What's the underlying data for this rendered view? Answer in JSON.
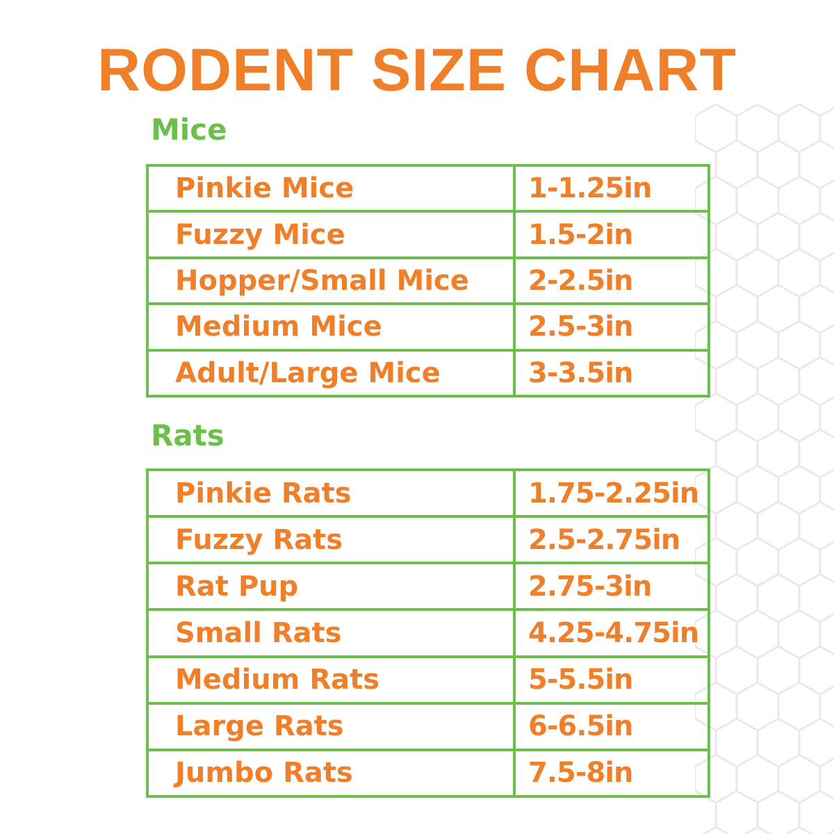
{
  "title": "RODENT SIZE CHART",
  "colors": {
    "title": "#f07f2a",
    "section": "#6cbf4a",
    "border": "#6cbf4a",
    "text": "#f07f2a"
  },
  "mice": {
    "heading": "Mice",
    "rows": [
      {
        "name": "Pinkie Mice",
        "size": "1-1.25in"
      },
      {
        "name": "Fuzzy Mice",
        "size": "1.5-2in"
      },
      {
        "name": "Hopper/Small Mice",
        "size": "2-2.5in"
      },
      {
        "name": "Medium Mice",
        "size": "2.5-3in"
      },
      {
        "name": "Adult/Large Mice",
        "size": "3-3.5in"
      }
    ]
  },
  "rats": {
    "heading": "Rats",
    "rows": [
      {
        "name": "Pinkie Rats",
        "size": "1.75-2.25in"
      },
      {
        "name": "Fuzzy Rats",
        "size": "2.5-2.75in"
      },
      {
        "name": "Rat Pup",
        "size": "2.75-3in"
      },
      {
        "name": "Small Rats",
        "size": "4.25-4.75in"
      },
      {
        "name": "Medium Rats",
        "size": "5-5.5in"
      },
      {
        "name": "Large Rats",
        "size": "6-6.5in"
      },
      {
        "name": "Jumbo Rats",
        "size": "7.5-8in"
      }
    ]
  }
}
